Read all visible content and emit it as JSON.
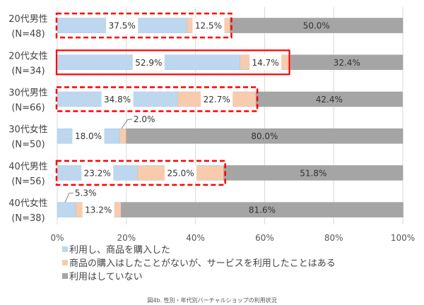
{
  "chart_data": {
    "type": "bar",
    "orientation": "horizontal",
    "stacked": true,
    "percent": true,
    "categories": [
      {
        "label": "20代男性",
        "n": "(N=48)"
      },
      {
        "label": "20代女性",
        "n": "(N=34)"
      },
      {
        "label": "30代男性",
        "n": "(N=66)"
      },
      {
        "label": "30代女性",
        "n": "(N=50)"
      },
      {
        "label": "40代男性",
        "n": "(N=56)"
      },
      {
        "label": "40代女性",
        "n": "(N=38)"
      }
    ],
    "series": [
      {
        "name": "利用し、商品を購入した",
        "color": "#bdd7ee",
        "values": [
          37.5,
          52.9,
          34.8,
          18.0,
          23.2,
          5.3
        ],
        "labels": [
          "37.5%",
          "52.9%",
          "34.8%",
          "18.0%",
          "23.2%",
          "5.3%"
        ]
      },
      {
        "name": "商品の購入はしたことがないが、サービスを利用したことはある",
        "color": "#f8cbad",
        "values": [
          12.5,
          14.7,
          22.7,
          2.0,
          25.0,
          13.2
        ],
        "labels": [
          "12.5%",
          "14.7%",
          "22.7%",
          "2.0%",
          "25.0%",
          "13.2%"
        ]
      },
      {
        "name": "利用はしていない",
        "color": "#a5a5a5",
        "values": [
          50.0,
          32.4,
          42.4,
          80.0,
          51.8,
          81.6
        ],
        "labels": [
          "50.0%",
          "32.4%",
          "42.4%",
          "80.0%",
          "51.8%",
          "81.6%"
        ]
      }
    ],
    "xticks": [
      "0%",
      "20%",
      "40%",
      "60%",
      "80%",
      "100%"
    ],
    "xlim": [
      0,
      100
    ],
    "grid": true,
    "legend": "bottom",
    "highlights": [
      {
        "row": 0,
        "style": "dashed",
        "color": "#ff0000"
      },
      {
        "row": 1,
        "style": "solid",
        "color": "#ff0000"
      },
      {
        "row": 2,
        "style": "dashed",
        "color": "#ff0000"
      },
      {
        "row": 4,
        "style": "dashed",
        "color": "#ff0000"
      }
    ],
    "caption": "図4b. 性別・年代別バーチャルショップの利用状況"
  }
}
